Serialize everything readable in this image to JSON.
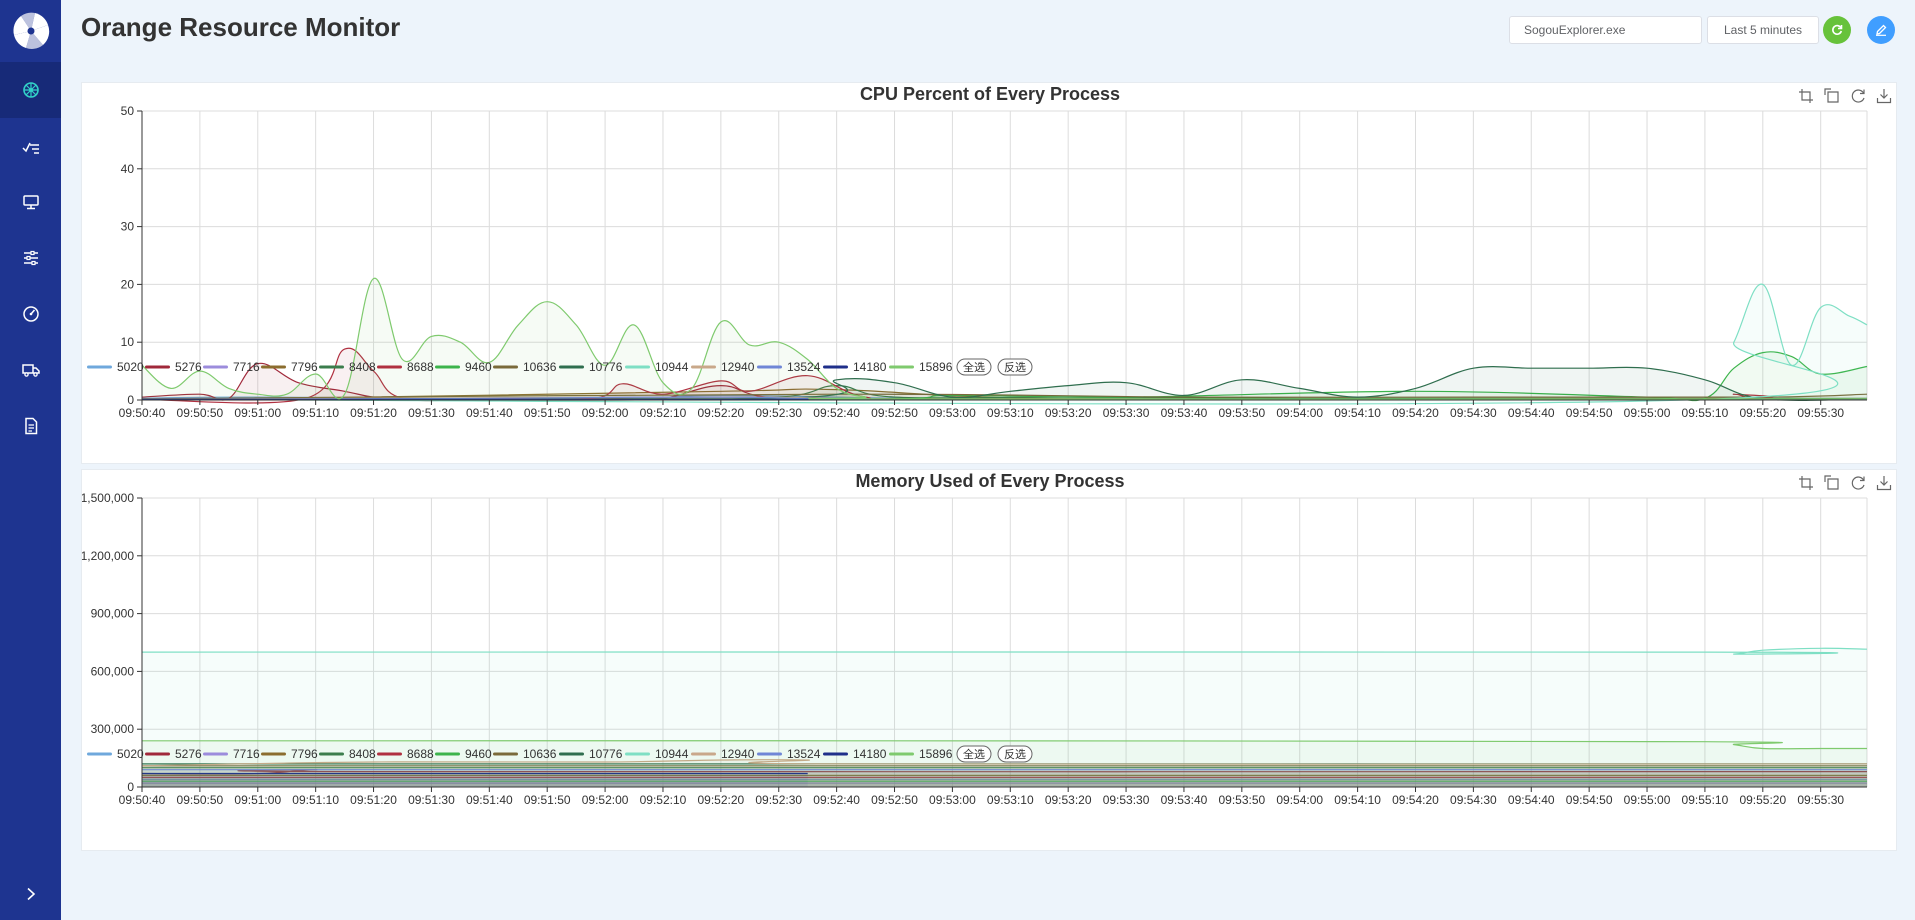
{
  "app": {
    "title": "Orange Resource Monitor"
  },
  "colors": {
    "sidebar": "#1e3490",
    "active_nav": "#172a78",
    "active_icon": "#32d2c9",
    "refresh": "#67c23a",
    "edit": "#409eff"
  },
  "sidebar": {
    "logo_icon": "orange-logo-icon",
    "items": [
      {
        "icon": "dashboard-wheel-icon",
        "active": true
      },
      {
        "icon": "chart-trend-icon",
        "active": false
      },
      {
        "icon": "monitor-icon",
        "active": false
      },
      {
        "icon": "sliders-icon",
        "active": false
      },
      {
        "icon": "gauge-icon",
        "active": false
      },
      {
        "icon": "truck-icon",
        "active": false
      },
      {
        "icon": "document-icon",
        "active": false
      }
    ],
    "collapse_icon": "chevron-right-icon"
  },
  "header": {
    "process_input_value": "SogouExplorer.exe",
    "time_range_label": "Last 5 minutes",
    "refresh_icon": "refresh-icon",
    "edit_icon": "edit-icon"
  },
  "toolbox": [
    "zoom-icon",
    "zoom-reset-icon",
    "restore-icon",
    "save-image-icon"
  ],
  "legend_buttons": {
    "select_all": "全选",
    "invert": "反选"
  },
  "chart_data": [
    {
      "id": "cpu",
      "type": "area",
      "title": "CPU Percent of Every Process",
      "ylim": [
        0,
        50
      ],
      "yticks": [
        0,
        10,
        20,
        30,
        40,
        50
      ],
      "ytick_labels": [
        "0",
        "10",
        "20",
        "30",
        "40",
        "50"
      ],
      "xlim": [
        "09:50:40",
        "09:55:38"
      ],
      "xticks": [
        "09:50:40",
        "09:50:50",
        "09:51:00",
        "09:51:10",
        "09:51:20",
        "09:51:30",
        "09:51:40",
        "09:51:50",
        "09:52:00",
        "09:52:10",
        "09:52:20",
        "09:52:30",
        "09:52:40",
        "09:52:50",
        "09:53:00",
        "09:53:10",
        "09:53:20",
        "09:53:30",
        "09:53:40",
        "09:53:50",
        "09:54:00",
        "09:54:10",
        "09:54:20",
        "09:54:30",
        "09:54:40",
        "09:54:50",
        "09:55:00",
        "09:55:10",
        "09:55:20",
        "09:55:30"
      ],
      "grid": true,
      "legend_position": "bottom-left",
      "series": [
        {
          "name": "5020",
          "color": "#6fa8dc",
          "x": [
            "09:50:40",
            "09:51:00",
            "09:52:00",
            "09:52:20",
            "09:53:00",
            "09:54:00",
            "09:55:00",
            "09:55:38"
          ],
          "values": [
            0.3,
            0.5,
            0.2,
            0.8,
            0.2,
            0.2,
            0.2,
            0.2
          ]
        },
        {
          "name": "5276",
          "color": "#a0283a",
          "x": [
            "09:50:40",
            "09:50:50",
            "09:50:55",
            "09:51:00",
            "09:51:07",
            "09:51:15",
            "09:51:20",
            "09:51:25",
            "09:51:40",
            "09:52:00",
            "09:52:10",
            "09:52:20",
            "09:52:30",
            "09:53:00",
            "09:55:00",
            "09:55:38"
          ],
          "values": [
            0.5,
            1.0,
            0.3,
            6.3,
            3.0,
            1.5,
            0.5,
            0.2,
            0.2,
            0.3,
            0.3,
            2.5,
            0.3,
            0.2,
            0.2,
            0.2
          ]
        },
        {
          "name": "7716",
          "color": "#9c8cdc",
          "x": [
            "09:50:40",
            "09:51:10",
            "09:52:20",
            "09:53:00",
            "09:55:00",
            "09:55:38"
          ],
          "values": [
            0.1,
            0.2,
            0.5,
            0.1,
            0.1,
            0.1
          ]
        },
        {
          "name": "7796",
          "color": "#8b6d2e",
          "x": [
            "09:50:40",
            "09:51:00",
            "09:52:20",
            "09:52:40",
            "09:53:20",
            "09:55:00",
            "09:55:38"
          ],
          "values": [
            0.2,
            0.2,
            1.5,
            1.8,
            0.2,
            0.2,
            0.2
          ]
        },
        {
          "name": "8408",
          "color": "#3b7d4c",
          "x": [
            "09:50:40",
            "09:52:00",
            "09:52:30",
            "09:52:40",
            "09:52:50",
            "09:53:20",
            "09:54:00",
            "09:55:00",
            "09:55:38"
          ],
          "values": [
            0.1,
            0.2,
            0.5,
            2.5,
            0.5,
            0.5,
            0.3,
            0.3,
            0.3
          ]
        },
        {
          "name": "8688",
          "color": "#b03040",
          "x": [
            "09:50:40",
            "09:51:08",
            "09:51:15",
            "09:51:20",
            "09:51:25",
            "09:51:40",
            "09:51:58",
            "09:52:03",
            "09:52:10",
            "09:52:20",
            "09:52:25",
            "09:52:35",
            "09:52:45",
            "09:53:00",
            "09:55:10",
            "09:55:15",
            "09:55:20",
            "09:55:38"
          ],
          "values": [
            0.1,
            0.2,
            8.8,
            5.0,
            0.3,
            0.2,
            0.3,
            2.8,
            1.0,
            3.3,
            1.5,
            4.2,
            0.5,
            0.2,
            0.2,
            1.0,
            0.2,
            0.2
          ]
        },
        {
          "name": "9460",
          "color": "#3cb44b",
          "x": [
            "09:50:40",
            "09:52:40",
            "09:53:00",
            "09:53:30",
            "09:54:20",
            "09:55:00",
            "09:55:10",
            "09:55:15",
            "09:55:20",
            "09:55:25",
            "09:55:30",
            "09:55:38"
          ],
          "values": [
            0.1,
            0.1,
            0.8,
            0.5,
            1.5,
            0.5,
            0.3,
            5.5,
            8.2,
            7.5,
            4.5,
            5.8
          ]
        },
        {
          "name": "10636",
          "color": "#7a6a3a",
          "x": [
            "09:50:40",
            "09:52:40",
            "09:53:40",
            "09:54:30",
            "09:55:20",
            "09:55:38"
          ],
          "values": [
            0.2,
            1.0,
            0.5,
            0.5,
            0.5,
            1.0
          ]
        },
        {
          "name": "10776",
          "color": "#2f6e4e",
          "x": [
            "09:50:40",
            "09:52:30",
            "09:52:40",
            "09:52:50",
            "09:53:00",
            "09:53:10",
            "09:53:20",
            "09:53:30",
            "09:53:40",
            "09:53:50",
            "09:54:00",
            "09:54:10",
            "09:54:20",
            "09:54:30",
            "09:54:40",
            "09:54:50",
            "09:55:00",
            "09:55:10",
            "09:55:20",
            "09:55:38"
          ],
          "values": [
            0.1,
            0.3,
            3.5,
            3.0,
            0.5,
            1.5,
            2.5,
            3.0,
            0.8,
            3.5,
            2.0,
            0.5,
            2.0,
            5.5,
            5.5,
            5.5,
            5.5,
            3.5,
            0.2,
            0.2
          ]
        },
        {
          "name": "10944",
          "color": "#7edfc4",
          "x": [
            "09:50:40",
            "09:55:10",
            "09:55:15",
            "09:55:20",
            "09:55:25",
            "09:55:30",
            "09:55:35",
            "09:55:38"
          ],
          "values": [
            0.1,
            0.1,
            10,
            20,
            6,
            16,
            14.5,
            13
          ]
        },
        {
          "name": "12940",
          "color": "#c9a88a",
          "x": [
            "09:50:40",
            "09:52:20",
            "09:53:00",
            "09:55:38"
          ],
          "values": [
            0.1,
            0.5,
            0.1,
            0.1
          ]
        },
        {
          "name": "13524",
          "color": "#6f86d6",
          "x": [
            "09:50:40",
            "09:51:40",
            "09:52:20",
            "09:53:00",
            "09:55:38"
          ],
          "values": [
            0.1,
            0.3,
            0.5,
            0.1,
            0.1
          ]
        },
        {
          "name": "14180",
          "color": "#1f2f8a",
          "x": [
            "09:50:40",
            "09:55:38"
          ],
          "values": [
            0.1,
            0.1
          ]
        },
        {
          "name": "15896",
          "color": "#7fca6e",
          "x": [
            "09:50:40",
            "09:50:45",
            "09:50:50",
            "09:50:55",
            "09:51:00",
            "09:51:05",
            "09:51:10",
            "09:51:15",
            "09:51:20",
            "09:51:25",
            "09:51:30",
            "09:51:35",
            "09:51:40",
            "09:51:45",
            "09:51:50",
            "09:51:55",
            "09:52:00",
            "09:52:05",
            "09:52:10",
            "09:52:15",
            "09:52:20",
            "09:52:25",
            "09:52:30",
            "09:52:35",
            "09:52:40",
            "09:52:45",
            "09:52:50",
            "09:55:38"
          ],
          "values": [
            6,
            2,
            5,
            2,
            1,
            1,
            4.5,
            1,
            21,
            7,
            11,
            10,
            6.5,
            13,
            17,
            13,
            6,
            13,
            3,
            2,
            13.5,
            9.5,
            10,
            7,
            2,
            0.5,
            0.2,
            0.2
          ]
        }
      ]
    },
    {
      "id": "mem",
      "type": "area",
      "title": "Memory Used of Every Process",
      "ylim": [
        0,
        1500000
      ],
      "yticks": [
        0,
        300000,
        600000,
        900000,
        1200000,
        1500000
      ],
      "ytick_labels": [
        "0",
        "300,000",
        "600,000",
        "900,000",
        "1,200,000",
        "1,500,000"
      ],
      "xlim": [
        "09:50:40",
        "09:55:38"
      ],
      "xticks": [
        "09:50:40",
        "09:50:50",
        "09:51:00",
        "09:51:10",
        "09:51:20",
        "09:51:30",
        "09:51:40",
        "09:51:50",
        "09:52:00",
        "09:52:10",
        "09:52:20",
        "09:52:30",
        "09:52:40",
        "09:52:50",
        "09:53:00",
        "09:53:10",
        "09:53:20",
        "09:53:30",
        "09:53:40",
        "09:53:50",
        "09:54:00",
        "09:54:10",
        "09:54:20",
        "09:54:30",
        "09:54:40",
        "09:54:50",
        "09:55:00",
        "09:55:10",
        "09:55:20",
        "09:55:30"
      ],
      "grid": true,
      "legend_position": "bottom-left",
      "series": [
        {
          "name": "5020",
          "color": "#6fa8dc",
          "x": [
            "09:50:40",
            "09:55:38"
          ],
          "values": [
            40000,
            40000
          ]
        },
        {
          "name": "5276",
          "color": "#a0283a",
          "x": [
            "09:50:40",
            "09:51:00",
            "09:51:10",
            "09:51:20",
            "09:55:38"
          ],
          "values": [
            70000,
            70000,
            90000,
            80000,
            80000
          ]
        },
        {
          "name": "7716",
          "color": "#9c8cdc",
          "x": [
            "09:50:40",
            "09:55:38"
          ],
          "values": [
            20000,
            20000
          ]
        },
        {
          "name": "7796",
          "color": "#8b6d2e",
          "x": [
            "09:50:40",
            "09:55:38"
          ],
          "values": [
            60000,
            60000
          ]
        },
        {
          "name": "8408",
          "color": "#3b7d4c",
          "x": [
            "09:50:40",
            "09:55:38"
          ],
          "values": [
            100000,
            100000
          ]
        },
        {
          "name": "8688",
          "color": "#b03040",
          "x": [
            "09:50:40",
            "09:55:38"
          ],
          "values": [
            50000,
            50000
          ]
        },
        {
          "name": "9460",
          "color": "#3cb44b",
          "x": [
            "09:50:40",
            "09:55:38"
          ],
          "values": [
            30000,
            30000
          ]
        },
        {
          "name": "10636",
          "color": "#7a6a3a",
          "x": [
            "09:50:40",
            "09:55:38"
          ],
          "values": [
            110000,
            110000
          ]
        },
        {
          "name": "10776",
          "color": "#2f6e4e",
          "x": [
            "09:50:40",
            "09:55:38"
          ],
          "values": [
            120000,
            120000
          ]
        },
        {
          "name": "10944",
          "color": "#7edfc4",
          "x": [
            "09:50:40",
            "09:55:10",
            "09:55:15",
            "09:55:20",
            "09:55:30",
            "09:55:38"
          ],
          "values": [
            700000,
            700000,
            690000,
            710000,
            720000,
            715000
          ]
        },
        {
          "name": "12940",
          "color": "#c9a88a",
          "x": [
            "09:50:40",
            "09:51:20",
            "09:52:00",
            "09:52:20",
            "09:52:35",
            "09:52:40",
            "09:55:38"
          ],
          "values": [
            110000,
            130000,
            130000,
            140000,
            140000,
            120000,
            120000
          ]
        },
        {
          "name": "13524",
          "color": "#6f86d6",
          "x": [
            "09:50:40",
            "09:55:38"
          ],
          "values": [
            90000,
            90000
          ]
        },
        {
          "name": "14180",
          "color": "#1f2f8a",
          "x": [
            "09:50:40",
            "09:52:35"
          ],
          "values": [
            70000,
            70000
          ]
        },
        {
          "name": "15896",
          "color": "#7fca6e",
          "x": [
            "09:50:40",
            "09:52:40",
            "09:55:10",
            "09:55:15",
            "09:55:20",
            "09:55:30",
            "09:55:38"
          ],
          "values": [
            240000,
            240000,
            235000,
            220000,
            200000,
            200000,
            200000
          ]
        }
      ]
    }
  ]
}
